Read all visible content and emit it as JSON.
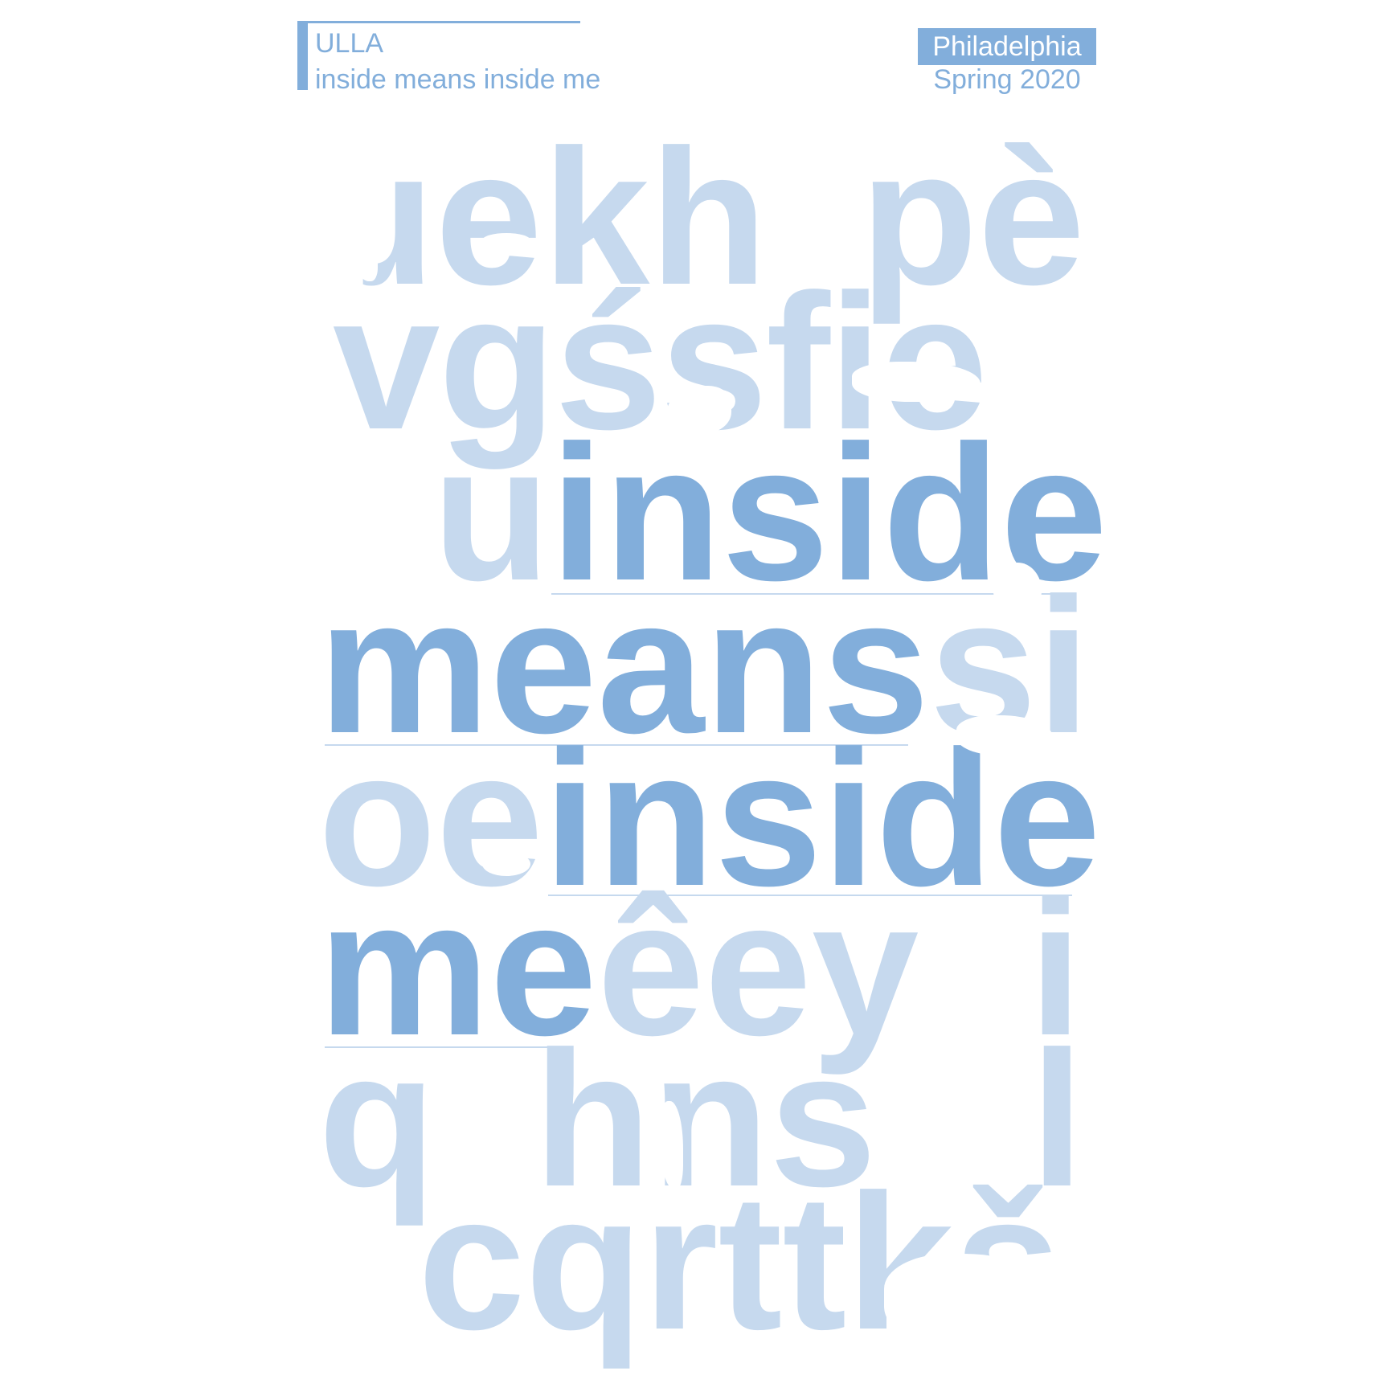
{
  "colors": {
    "background": "#ffffff",
    "accent": "#82aedb",
    "accent_light": "#c6d9ee"
  },
  "header": {
    "artist": "ULLA",
    "subtitle": "inside means inside me",
    "city": "Philadelphia",
    "season": "Spring 2020"
  },
  "type_rows": [
    {
      "light_a": "ɹekh",
      "light_b": "pè"
    },
    {
      "light_a": "vgśsfie"
    },
    {
      "light_prefix": "u",
      "dark": "inside"
    },
    {
      "dark": "means",
      "light_suffix": "si"
    },
    {
      "light_prefix": "oe",
      "dark": "inside"
    },
    {
      "dark": "me",
      "light_suffix": "êey",
      "light_tail": "i"
    },
    {
      "light_a": "q",
      "light_b": "hns",
      "light_c": "l"
    },
    {
      "light_a": "cqrttkš"
    }
  ]
}
